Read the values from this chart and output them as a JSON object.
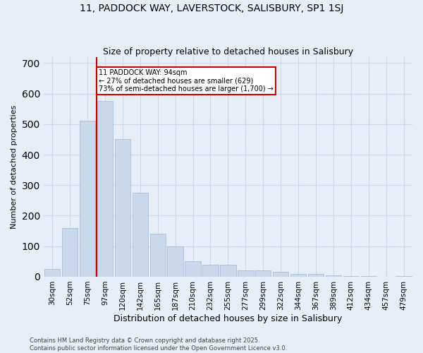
{
  "title": "11, PADDOCK WAY, LAVERSTOCK, SALISBURY, SP1 1SJ",
  "subtitle": "Size of property relative to detached houses in Salisbury",
  "xlabel": "Distribution of detached houses by size in Salisbury",
  "ylabel": "Number of detached properties",
  "categories": [
    "30sqm",
    "52sqm",
    "75sqm",
    "97sqm",
    "120sqm",
    "142sqm",
    "165sqm",
    "187sqm",
    "210sqm",
    "232sqm",
    "255sqm",
    "277sqm",
    "299sqm",
    "322sqm",
    "344sqm",
    "367sqm",
    "389sqm",
    "412sqm",
    "434sqm",
    "457sqm",
    "479sqm"
  ],
  "values": [
    25,
    160,
    510,
    575,
    450,
    275,
    140,
    100,
    50,
    40,
    40,
    20,
    20,
    15,
    10,
    8,
    5,
    3,
    2,
    1,
    3
  ],
  "bar_color": "#c9d9ec",
  "bar_edge_color": "#a0b8d8",
  "red_line_index": 3,
  "annotation_text": "11 PADDOCK WAY: 94sqm\n← 27% of detached houses are smaller (629)\n73% of semi-detached houses are larger (1,700) →",
  "annotation_box_color": "#ffffff",
  "annotation_box_edge_color": "#cc0000",
  "red_line_color": "#cc0000",
  "grid_color": "#d0d8e8",
  "background_color": "#e8eef8",
  "ylim": [
    0,
    720
  ],
  "yticks": [
    0,
    100,
    200,
    300,
    400,
    500,
    600,
    700
  ],
  "footer_text": "Contains HM Land Registry data © Crown copyright and database right 2025.\nContains public sector information licensed under the Open Government Licence v3.0.",
  "title_fontsize": 10,
  "subtitle_fontsize": 9,
  "ylabel_fontsize": 8,
  "xlabel_fontsize": 9
}
